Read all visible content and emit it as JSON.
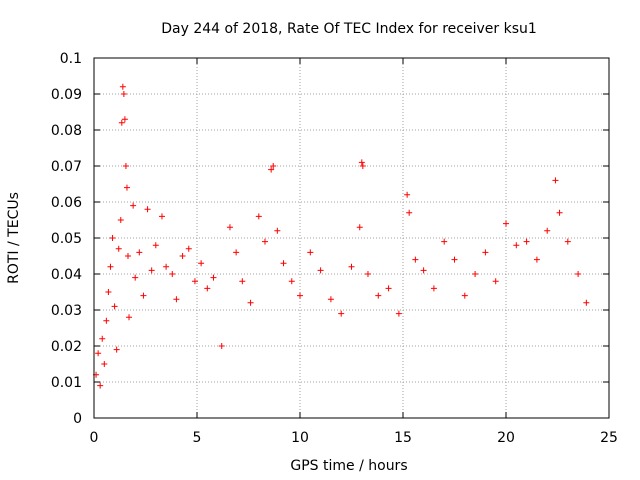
{
  "chart_data": {
    "type": "scatter",
    "title": "Day 244 of 2018, Rate Of TEC Index for receiver ksu1",
    "xlabel": "GPS time / hours",
    "ylabel": "ROTI / TECUs",
    "xlim": [
      0,
      25
    ],
    "ylim": [
      0,
      0.1
    ],
    "x_ticks": [
      "0",
      "5",
      "10",
      "15",
      "20",
      "25"
    ],
    "y_ticks": [
      "0",
      "0.01",
      "0.02",
      "0.03",
      "0.04",
      "0.05",
      "0.06",
      "0.07",
      "0.08",
      "0.09",
      "0.1"
    ],
    "grid": true,
    "marker": "+",
    "series_color": "#ff0000",
    "series": [
      {
        "name": "ROTI",
        "points": [
          [
            0.1,
            0.012
          ],
          [
            0.2,
            0.018
          ],
          [
            0.3,
            0.009
          ],
          [
            0.4,
            0.022
          ],
          [
            0.5,
            0.015
          ],
          [
            0.6,
            0.027
          ],
          [
            0.7,
            0.035
          ],
          [
            0.8,
            0.042
          ],
          [
            0.9,
            0.05
          ],
          [
            1.0,
            0.031
          ],
          [
            1.1,
            0.019
          ],
          [
            1.2,
            0.047
          ],
          [
            1.3,
            0.055
          ],
          [
            1.35,
            0.082
          ],
          [
            1.4,
            0.092
          ],
          [
            1.45,
            0.09
          ],
          [
            1.5,
            0.083
          ],
          [
            1.55,
            0.07
          ],
          [
            1.6,
            0.064
          ],
          [
            1.65,
            0.045
          ],
          [
            1.7,
            0.028
          ],
          [
            1.9,
            0.059
          ],
          [
            2.0,
            0.039
          ],
          [
            2.2,
            0.046
          ],
          [
            2.4,
            0.034
          ],
          [
            2.6,
            0.058
          ],
          [
            2.8,
            0.041
          ],
          [
            3.0,
            0.048
          ],
          [
            3.3,
            0.056
          ],
          [
            3.5,
            0.042
          ],
          [
            3.8,
            0.04
          ],
          [
            4.0,
            0.033
          ],
          [
            4.3,
            0.045
          ],
          [
            4.6,
            0.047
          ],
          [
            4.9,
            0.038
          ],
          [
            5.2,
            0.043
          ],
          [
            5.5,
            0.036
          ],
          [
            5.8,
            0.039
          ],
          [
            6.2,
            0.02
          ],
          [
            6.6,
            0.053
          ],
          [
            6.9,
            0.046
          ],
          [
            7.2,
            0.038
          ],
          [
            7.6,
            0.032
          ],
          [
            8.0,
            0.056
          ],
          [
            8.3,
            0.049
          ],
          [
            8.6,
            0.069
          ],
          [
            8.7,
            0.07
          ],
          [
            8.9,
            0.052
          ],
          [
            9.2,
            0.043
          ],
          [
            9.6,
            0.038
          ],
          [
            10.0,
            0.034
          ],
          [
            10.5,
            0.046
          ],
          [
            11.0,
            0.041
          ],
          [
            11.5,
            0.033
          ],
          [
            12.0,
            0.029
          ],
          [
            12.5,
            0.042
          ],
          [
            12.9,
            0.053
          ],
          [
            13.0,
            0.071
          ],
          [
            13.05,
            0.07
          ],
          [
            13.3,
            0.04
          ],
          [
            13.8,
            0.034
          ],
          [
            14.3,
            0.036
          ],
          [
            14.8,
            0.029
          ],
          [
            15.2,
            0.062
          ],
          [
            15.3,
            0.057
          ],
          [
            15.6,
            0.044
          ],
          [
            16.0,
            0.041
          ],
          [
            16.5,
            0.036
          ],
          [
            17.0,
            0.049
          ],
          [
            17.5,
            0.044
          ],
          [
            18.0,
            0.034
          ],
          [
            18.5,
            0.04
          ],
          [
            19.0,
            0.046
          ],
          [
            19.5,
            0.038
          ],
          [
            20.0,
            0.054
          ],
          [
            20.5,
            0.048
          ],
          [
            21.0,
            0.049
          ],
          [
            21.5,
            0.044
          ],
          [
            22.0,
            0.052
          ],
          [
            22.4,
            0.066
          ],
          [
            22.6,
            0.057
          ],
          [
            23.0,
            0.049
          ],
          [
            23.5,
            0.04
          ],
          [
            23.9,
            0.032
          ]
        ]
      }
    ]
  }
}
